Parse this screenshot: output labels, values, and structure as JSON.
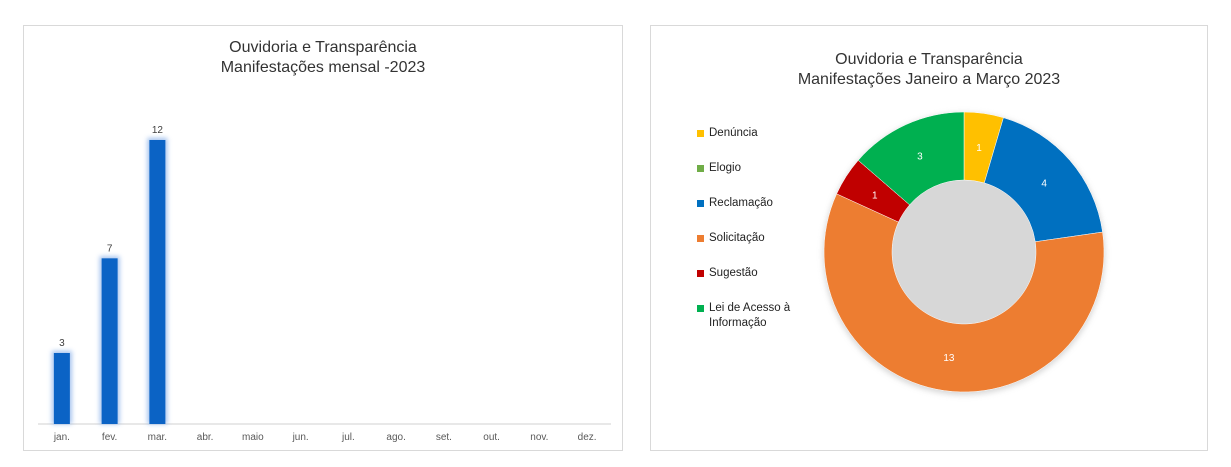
{
  "bar_chart": {
    "title_line1": "Ouvidoria e Transparência",
    "title_line2": "Manifestações mensal -2023"
  },
  "donut_chart": {
    "title_line1": "Ouvidoria e Transparência",
    "title_line2": "Manifestações Janeiro a Março 2023"
  },
  "chart_data": [
    {
      "type": "bar",
      "title": "Ouvidoria e Transparência\nManifestações mensal -2023",
      "categories": [
        "jan.",
        "fev.",
        "mar.",
        "abr.",
        "maio",
        "jun.",
        "jul.",
        "ago.",
        "set.",
        "out.",
        "nov.",
        "dez."
      ],
      "values": [
        3,
        7,
        12,
        null,
        null,
        null,
        null,
        null,
        null,
        null,
        null,
        null
      ],
      "data_labels": [
        "3",
        "7",
        "12",
        "",
        "",
        "",
        "",
        "",
        "",
        "",
        "",
        ""
      ],
      "ylim": [
        0,
        12
      ],
      "grid": false,
      "legend": "none",
      "bar_color": "#0b63c5"
    },
    {
      "type": "pie",
      "donut": true,
      "title": "Ouvidoria e Transparência\nManifestações Janeiro a Março 2023",
      "legend": "left",
      "labels": [
        "Denúncia",
        "Elogio",
        "Reclamação",
        "Solicitação",
        "Sugestão",
        "Lei de Acesso à Informação"
      ],
      "legend_lines": [
        [
          "Denúncia"
        ],
        [
          "Elogio"
        ],
        [
          "Reclamação"
        ],
        [
          "Solicitação"
        ],
        [
          "Sugestão"
        ],
        [
          "Lei de Acesso à",
          "Informação"
        ]
      ],
      "values": [
        1,
        0,
        4,
        13,
        1,
        3
      ],
      "data_labels": [
        "1",
        "",
        "4",
        "13",
        "1",
        "3"
      ],
      "colors": [
        "#ffc000",
        "#70ad47",
        "#0070c0",
        "#ed7d31",
        "#c00000",
        "#00b050"
      ]
    }
  ]
}
